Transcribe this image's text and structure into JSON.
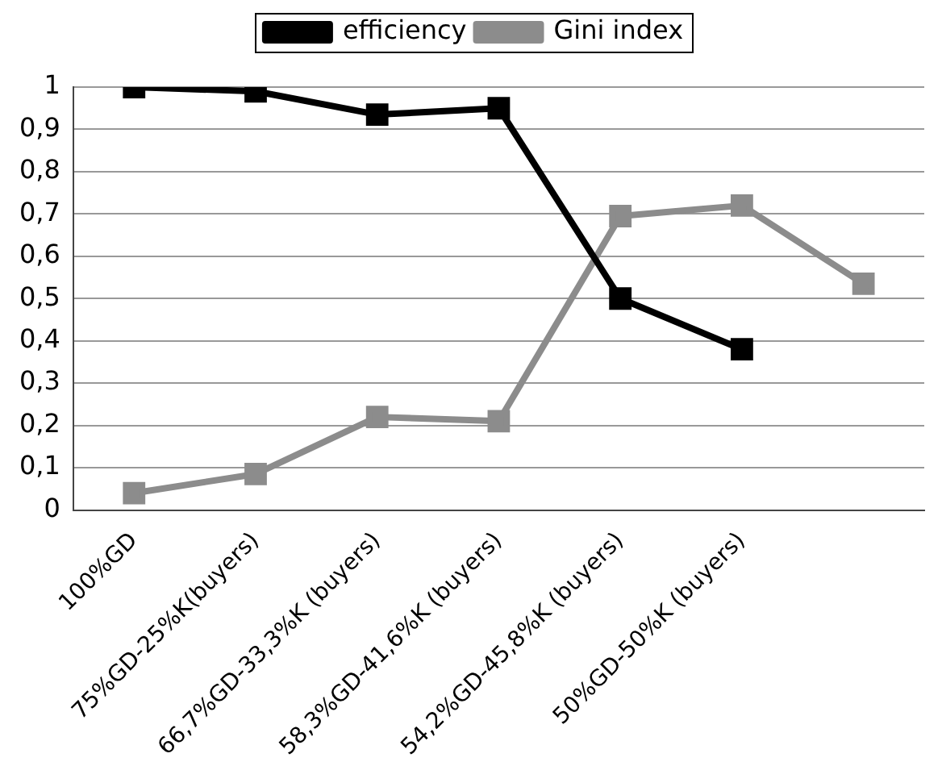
{
  "chart_data": {
    "type": "line",
    "categories": [
      "100%GD",
      "75%GD-25%K(buyers)",
      "66,7%GD-33,3%K (buyers)",
      "58,3%GD-41,6%K (buyers)",
      "54,2%GD-45,8%K (buyers)",
      "50%GD-50%K (buyers)",
      null
    ],
    "series": [
      {
        "name": "efficiency",
        "color": "#000000",
        "values": [
          1.0,
          0.99,
          0.935,
          0.95,
          0.5,
          0.38,
          null
        ]
      },
      {
        "name": "Gini index",
        "color": "#8c8c8c",
        "values": [
          0.04,
          0.085,
          0.22,
          0.21,
          0.695,
          0.72,
          0.535
        ]
      }
    ],
    "ylim": [
      0,
      1
    ],
    "yticks": [
      0,
      {
        "value": 0.1,
        "label": "0,1"
      },
      {
        "value": 0.2,
        "label": "0,2"
      },
      {
        "value": 0.3,
        "label": "0,3"
      },
      {
        "value": 0.4,
        "label": "0,4"
      },
      {
        "value": 0.5,
        "label": "0,5"
      },
      {
        "value": 0.6,
        "label": "0,6"
      },
      {
        "value": 0.7,
        "label": "0,7"
      },
      {
        "value": 0.8,
        "label": "0,8"
      },
      {
        "value": 0.9,
        "label": "0,9"
      },
      1
    ],
    "grid": "y",
    "legend": "top",
    "marker": "square",
    "line_style": "solid"
  }
}
